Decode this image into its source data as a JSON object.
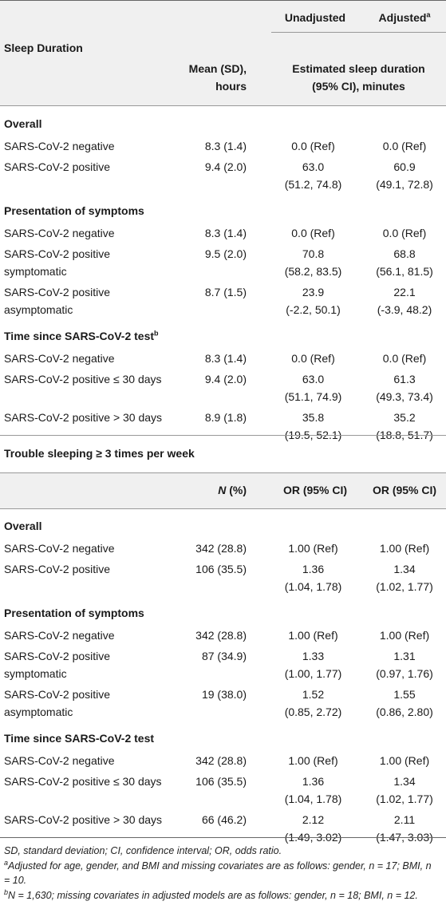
{
  "table1": {
    "col_unadjusted": "Unadjusted",
    "col_adjusted": "Adjusted",
    "col_adjusted_sup": "a",
    "section_title": "Sleep Duration",
    "mean_header_l1": "Mean (SD),",
    "mean_header_l2": "hours",
    "est_header_l1": "Estimated sleep duration",
    "est_header_l2": "(95% CI), minutes",
    "groups": [
      {
        "title": "Overall",
        "rows": [
          {
            "label": "SARS-CoV-2 negative",
            "label2": "",
            "val": "8.3 (1.4)",
            "u1": "0.0 (Ref)",
            "u2": "",
            "a1": "0.0 (Ref)",
            "a2": ""
          },
          {
            "label": "SARS-CoV-2 positive",
            "label2": "",
            "val": "9.4 (2.0)",
            "u1": "63.0",
            "u2": "(51.2, 74.8)",
            "a1": "60.9",
            "a2": "(49.1, 72.8)"
          }
        ]
      },
      {
        "title": "Presentation of symptoms",
        "rows": [
          {
            "label": "SARS-CoV-2 negative",
            "label2": "",
            "val": "8.3 (1.4)",
            "u1": "0.0 (Ref)",
            "u2": "",
            "a1": "0.0 (Ref)",
            "a2": ""
          },
          {
            "label": "SARS-CoV-2 positive",
            "label2": "symptomatic",
            "val": "9.5 (2.0)",
            "u1": "70.8",
            "u2": "(58.2, 83.5)",
            "a1": "68.8",
            "a2": "(56.1, 81.5)"
          },
          {
            "label": "SARS-CoV-2 positive",
            "label2": "asymptomatic",
            "val": "8.7 (1.5)",
            "u1": "23.9",
            "u2": "(-2.2, 50.1)",
            "a1": "22.1",
            "a2": "(-3.9, 48.2)"
          }
        ]
      },
      {
        "title": "Time since SARS-CoV-2 test",
        "title_sup": "b",
        "rows": [
          {
            "label": "SARS-CoV-2 negative",
            "label2": "",
            "val": "8.3 (1.4)",
            "u1": "0.0 (Ref)",
            "u2": "",
            "a1": "0.0 (Ref)",
            "a2": ""
          },
          {
            "label": "SARS-CoV-2 positive ≤ 30 days",
            "label2": "",
            "val": "9.4 (2.0)",
            "u1": "63.0",
            "u2": "(51.1, 74.9)",
            "a1": "61.3",
            "a2": "(49.3, 73.4)"
          },
          {
            "label": "SARS-CoV-2 positive > 30 days",
            "label2": "",
            "val": "8.9 (1.8)",
            "u1": "35.8",
            "u2": "(19.5, 52.1)",
            "a1": "35.2",
            "a2": "(18.8, 51.7)"
          }
        ]
      }
    ]
  },
  "table2": {
    "section_title": "Trouble sleeping ≥ 3 times per week",
    "n_header": "N",
    "n_header_suffix": " (%)",
    "or_header": "OR (95% CI)",
    "or_header_adj": "OR (95% CI)",
    "groups": [
      {
        "title": "Overall",
        "rows": [
          {
            "label": "SARS-CoV-2 negative",
            "label2": "",
            "val": "342 (28.8)",
            "u1": "1.00 (Ref)",
            "u2": "",
            "a1": "1.00 (Ref)",
            "a2": ""
          },
          {
            "label": "SARS-CoV-2 positive",
            "label2": "",
            "val": "106 (35.5)",
            "u1": "1.36",
            "u2": "(1.04, 1.78)",
            "a1": "1.34",
            "a2": "(1.02, 1.77)"
          }
        ]
      },
      {
        "title": "Presentation of symptoms",
        "rows": [
          {
            "label": "SARS-CoV-2 negative",
            "label2": "",
            "val": "342 (28.8)",
            "u1": "1.00 (Ref)",
            "u2": "",
            "a1": "1.00 (Ref)",
            "a2": ""
          },
          {
            "label": "SARS-CoV-2 positive",
            "label2": "symptomatic",
            "val": "87 (34.9)",
            "u1": "1.33",
            "u2": "(1.00, 1.77)",
            "a1": "1.31",
            "a2": "(0.97, 1.76)"
          },
          {
            "label": "SARS-CoV-2 positive",
            "label2": "asymptomatic",
            "val": "19 (38.0)",
            "u1": "1.52",
            "u2": "(0.85, 2.72)",
            "a1": "1.55",
            "a2": "(0.86, 2.80)"
          }
        ]
      },
      {
        "title": "Time since SARS-CoV-2 test",
        "rows": [
          {
            "label": "SARS-CoV-2 negative",
            "label2": "",
            "val": "342 (28.8)",
            "u1": "1.00 (Ref)",
            "u2": "",
            "a1": "1.00 (Ref)",
            "a2": ""
          },
          {
            "label": "SARS-CoV-2 positive ≤ 30 days",
            "label2": "",
            "val": "106 (35.5)",
            "u1": "1.36",
            "u2": "(1.04, 1.78)",
            "a1": "1.34",
            "a2": "(1.02, 1.77)"
          },
          {
            "label": "SARS-CoV-2 positive > 30 days",
            "label2": "",
            "val": "66 (46.2)",
            "u1": "2.12",
            "u2": "(1.49, 3.02)",
            "a1": "2.11",
            "a2": "(1.47, 3.03)"
          }
        ]
      }
    ]
  },
  "footnotes": {
    "abbrev": "SD, standard deviation; CI, confidence interval; OR, odds ratio.",
    "a_mark": "a",
    "a_text": "Adjusted for age, gender, and BMI and missing covariates are as follows: gender, n = 17; BMI, n = 10.",
    "b_mark": "b",
    "b_text": "N = 1,630; missing covariates in adjusted models are as follows: gender, n = 18; BMI, n = 12."
  }
}
